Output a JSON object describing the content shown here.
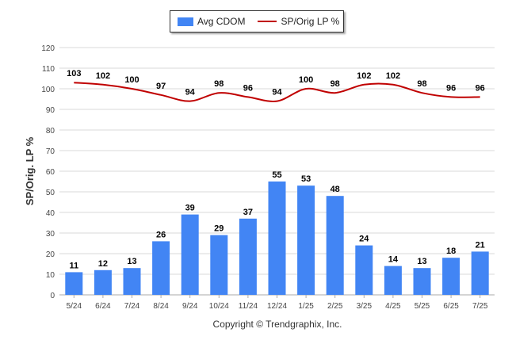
{
  "legend": {
    "bar_label": "Avg CDOM",
    "line_label": "SP/Orig LP %"
  },
  "copyright": "Copyright © Trendgraphix, Inc.",
  "colors": {
    "bar": "#4285f4",
    "line": "#c00000",
    "grid": "#d9d9d9",
    "axis": "#aaaaaa"
  },
  "chart_data": {
    "type": "bar",
    "title": "",
    "xlabel": "",
    "ylabel": "SP/Orig. LP %",
    "ylim": [
      0,
      120
    ],
    "yticks": [
      0,
      10,
      20,
      30,
      40,
      50,
      60,
      70,
      80,
      90,
      100,
      110,
      120
    ],
    "grid": true,
    "legend_position": "top",
    "categories": [
      "5/24",
      "6/24",
      "7/24",
      "8/24",
      "9/24",
      "10/24",
      "11/24",
      "12/24",
      "1/25",
      "2/25",
      "3/25",
      "4/25",
      "5/25",
      "6/25",
      "7/25"
    ],
    "series": [
      {
        "name": "Avg CDOM",
        "type": "bar",
        "values": [
          11,
          12,
          13,
          26,
          39,
          29,
          37,
          55,
          53,
          48,
          24,
          14,
          13,
          18,
          21
        ]
      },
      {
        "name": "SP/Orig LP %",
        "type": "line",
        "values": [
          103,
          102,
          100,
          97,
          94,
          98,
          96,
          94,
          100,
          98,
          102,
          102,
          98,
          96,
          96
        ]
      }
    ]
  }
}
